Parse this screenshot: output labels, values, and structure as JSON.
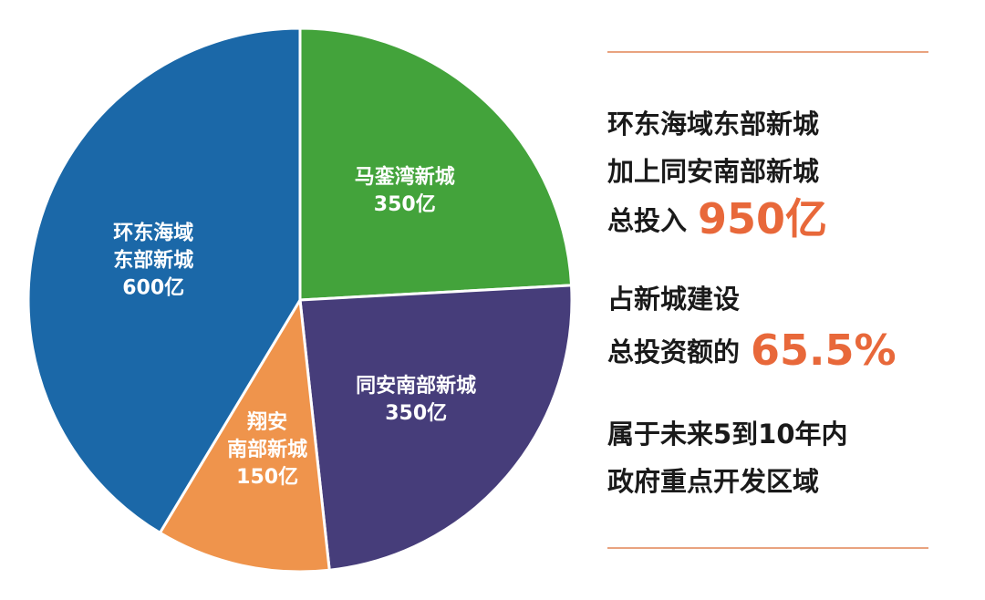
{
  "chart_data": {
    "type": "pie",
    "unit": "亿",
    "slices": [
      {
        "label_lines": [
          "马銮湾新城",
          "350亿"
        ],
        "value": 350,
        "color": "#43a33b"
      },
      {
        "label_lines": [
          "同安南部新城",
          "350亿"
        ],
        "value": 350,
        "color": "#463d7a"
      },
      {
        "label_lines": [
          "翔安",
          "南部新城",
          "150亿"
        ],
        "value": 150,
        "color": "#ef944c"
      },
      {
        "label_lines": [
          "环东海域",
          "东部新城",
          "600亿"
        ],
        "value": 600,
        "color": "#1b68a8"
      }
    ]
  },
  "panel": {
    "block1": {
      "line1": "环东海域东部新城",
      "line2": "加上同安南部新城",
      "line3_prefix": "总投入",
      "line3_value": "950亿"
    },
    "block2": {
      "line1": "占新城建设",
      "line2_prefix": "总投资额的",
      "line2_value": "65.5%"
    },
    "block3": {
      "line1": "属于未来5到10年内",
      "line2": "政府重点开发区域"
    }
  },
  "colors": {
    "accent": "#e8683a",
    "rule": "#e9a37f",
    "text": "#1a1a1a"
  }
}
